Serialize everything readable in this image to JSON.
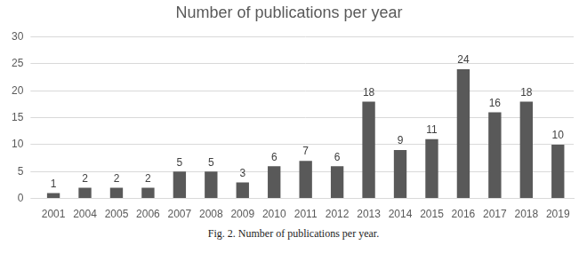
{
  "chart_data": {
    "type": "bar",
    "title": "Number of publications per year",
    "caption": "Fig. 2. Number of publications per year.",
    "categories": [
      "2001",
      "2004",
      "2005",
      "2006",
      "2007",
      "2008",
      "2009",
      "2010",
      "2011",
      "2012",
      "2013",
      "2014",
      "2015",
      "2016",
      "2017",
      "2018",
      "2019"
    ],
    "values": [
      1,
      2,
      2,
      2,
      5,
      5,
      3,
      6,
      7,
      6,
      18,
      9,
      11,
      24,
      16,
      18,
      10
    ],
    "color": "#595959",
    "ylim": [
      0,
      30
    ],
    "yticks": [
      0,
      5,
      10,
      15,
      20,
      25,
      30
    ],
    "grid": true,
    "data_labels": true
  }
}
